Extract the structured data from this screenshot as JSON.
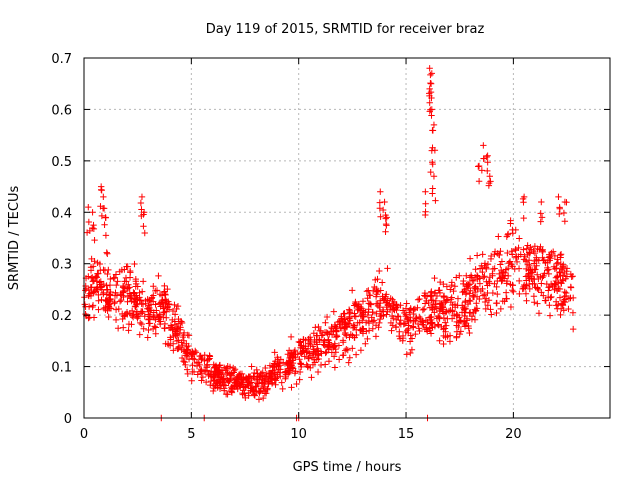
{
  "chart_data": {
    "type": "scatter",
    "title": "Day 119 of 2015, SRMTID for receiver braz",
    "xlabel": "GPS time / hours",
    "ylabel": "SRMTID / TECUs",
    "xlim": [
      0,
      24.5
    ],
    "ylim": [
      0,
      0.7
    ],
    "xticks": [
      "0",
      "5",
      "10",
      "15",
      "20"
    ],
    "yticks": [
      "0",
      "0.1",
      "0.2",
      "0.3",
      "0.4",
      "0.5",
      "0.6",
      "0.7"
    ],
    "grid": true,
    "marker": "+",
    "color": "#ff0000",
    "series": [
      {
        "name": "SRMTID",
        "trend": [
          [
            0.0,
            0.23
          ],
          [
            0.5,
            0.27
          ],
          [
            1.0,
            0.26
          ],
          [
            1.5,
            0.23
          ],
          [
            2.0,
            0.24
          ],
          [
            2.5,
            0.22
          ],
          [
            3.0,
            0.2
          ],
          [
            3.5,
            0.22
          ],
          [
            4.0,
            0.19
          ],
          [
            4.5,
            0.15
          ],
          [
            5.0,
            0.12
          ],
          [
            5.5,
            0.1
          ],
          [
            6.0,
            0.085
          ],
          [
            6.5,
            0.075
          ],
          [
            7.0,
            0.07
          ],
          [
            7.5,
            0.065
          ],
          [
            8.0,
            0.06
          ],
          [
            8.5,
            0.07
          ],
          [
            9.0,
            0.09
          ],
          [
            9.5,
            0.1
          ],
          [
            10.0,
            0.12
          ],
          [
            10.5,
            0.13
          ],
          [
            11.0,
            0.14
          ],
          [
            11.5,
            0.15
          ],
          [
            12.0,
            0.17
          ],
          [
            12.5,
            0.18
          ],
          [
            13.0,
            0.2
          ],
          [
            13.5,
            0.22
          ],
          [
            14.0,
            0.23
          ],
          [
            14.5,
            0.2
          ],
          [
            15.0,
            0.18
          ],
          [
            15.5,
            0.19
          ],
          [
            16.0,
            0.21
          ],
          [
            16.5,
            0.2
          ],
          [
            17.0,
            0.22
          ],
          [
            17.5,
            0.2
          ],
          [
            18.0,
            0.24
          ],
          [
            18.5,
            0.26
          ],
          [
            19.0,
            0.27
          ],
          [
            19.5,
            0.28
          ],
          [
            20.0,
            0.3
          ],
          [
            20.5,
            0.29
          ],
          [
            21.0,
            0.28
          ],
          [
            21.5,
            0.29
          ],
          [
            22.0,
            0.27
          ],
          [
            22.5,
            0.25
          ],
          [
            22.8,
            0.24
          ]
        ],
        "peaks": [
          [
            0.2,
            0.41
          ],
          [
            0.4,
            0.4
          ],
          [
            0.8,
            0.45
          ],
          [
            0.9,
            0.43
          ],
          [
            1.0,
            0.39
          ],
          [
            2.7,
            0.43
          ],
          [
            2.8,
            0.4
          ],
          [
            13.8,
            0.44
          ],
          [
            14.0,
            0.42
          ],
          [
            14.1,
            0.39
          ],
          [
            16.1,
            0.68
          ],
          [
            16.2,
            0.67
          ],
          [
            16.1,
            0.64
          ],
          [
            16.2,
            0.6
          ],
          [
            16.3,
            0.57
          ],
          [
            16.2,
            0.52
          ],
          [
            16.3,
            0.47
          ],
          [
            15.9,
            0.44
          ],
          [
            18.4,
            0.49
          ],
          [
            18.6,
            0.53
          ],
          [
            18.8,
            0.51
          ],
          [
            18.9,
            0.47
          ],
          [
            20.5,
            0.43
          ],
          [
            21.3,
            0.42
          ],
          [
            22.1,
            0.43
          ],
          [
            22.4,
            0.42
          ]
        ],
        "zero_points": [
          [
            3.6,
            0.0
          ],
          [
            5.6,
            0.0
          ],
          [
            9.9,
            0.0
          ],
          [
            10.0,
            0.0
          ],
          [
            16.0,
            0.0
          ]
        ]
      }
    ]
  }
}
